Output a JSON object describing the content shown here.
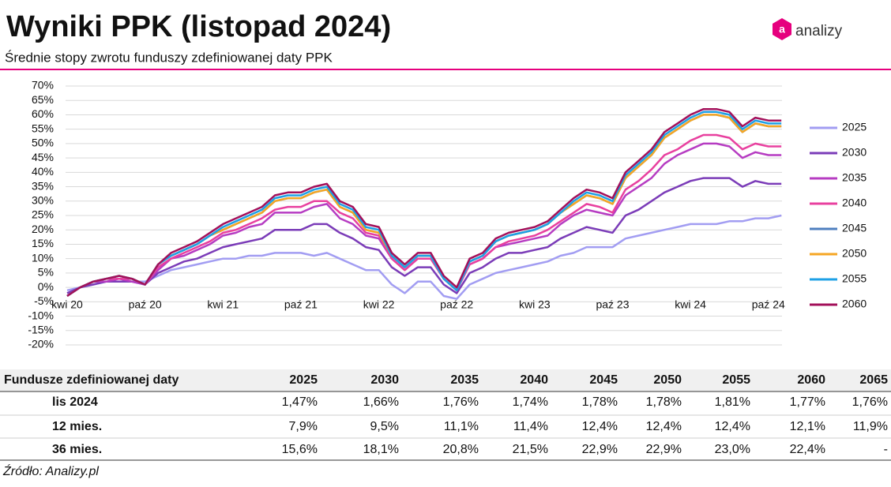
{
  "chart_data": {
    "type": "line",
    "title": "Wyniki PPK (listopad 2024)",
    "subtitle": "Średnie stopy zwrotu funduszy zdefiniowanej daty PPK",
    "logo": "analizy",
    "categories": [
      "kwi 20",
      null,
      null,
      null,
      null,
      null,
      "paź 20",
      null,
      null,
      null,
      null,
      null,
      "kwi 21",
      null,
      null,
      null,
      null,
      null,
      "paź 21",
      null,
      null,
      null,
      null,
      null,
      "kwi 22",
      null,
      null,
      null,
      null,
      null,
      "paź 22",
      null,
      null,
      null,
      null,
      null,
      "kwi 23",
      null,
      null,
      null,
      null,
      null,
      "paź 23",
      null,
      null,
      null,
      null,
      null,
      "kwi 24",
      null,
      null,
      null,
      null,
      null,
      "paź 24",
      null
    ],
    "ylim": [
      -20,
      70
    ],
    "yticks": [
      {
        "value": -20,
        "label": "-20%"
      },
      {
        "value": -15,
        "label": "-15%"
      },
      {
        "value": -10,
        "label": "-10%"
      },
      {
        "value": -5,
        "label": "-5%"
      },
      {
        "value": 0,
        "label": "0%"
      },
      {
        "value": 5,
        "label": "5%"
      },
      {
        "value": 10,
        "label": "10%"
      },
      {
        "value": 15,
        "label": "15%"
      },
      {
        "value": 20,
        "label": "20%"
      },
      {
        "value": 25,
        "label": "25%"
      },
      {
        "value": 30,
        "label": "30%"
      },
      {
        "value": 35,
        "label": "35%"
      },
      {
        "value": 40,
        "label": "40%"
      },
      {
        "value": 45,
        "label": "45%"
      },
      {
        "value": 50,
        "label": "50%"
      },
      {
        "value": 55,
        "label": "55%"
      },
      {
        "value": 60,
        "label": "60%"
      },
      {
        "value": 65,
        "label": "65%"
      },
      {
        "value": 70,
        "label": "70%"
      }
    ],
    "grid": true,
    "series": [
      {
        "name": "2025",
        "color": "#a29df2",
        "values": [
          -1,
          0,
          1,
          2,
          2,
          2,
          2,
          4,
          6,
          7,
          8,
          9,
          10,
          10,
          11,
          11,
          12,
          12,
          12,
          11,
          12,
          10,
          8,
          6,
          6,
          1,
          -2,
          2,
          2,
          -3,
          -4,
          1,
          3,
          5,
          6,
          7,
          8,
          9,
          11,
          12,
          14,
          14,
          14,
          17,
          18,
          19,
          20,
          21,
          22,
          22,
          22,
          23,
          23,
          24,
          24,
          25
        ]
      },
      {
        "name": "2030",
        "color": "#7b3cb8",
        "values": [
          -2,
          0,
          1,
          2,
          2,
          2,
          1,
          5,
          7,
          9,
          10,
          12,
          14,
          15,
          16,
          17,
          20,
          20,
          20,
          22,
          22,
          19,
          17,
          14,
          13,
          7,
          4,
          7,
          7,
          1,
          -2,
          5,
          7,
          10,
          12,
          12,
          13,
          14,
          17,
          19,
          21,
          20,
          19,
          25,
          27,
          30,
          33,
          35,
          37,
          38,
          38,
          38,
          35,
          37,
          36,
          36
        ]
      },
      {
        "name": "2035",
        "color": "#b63cc2",
        "values": [
          -3,
          0,
          2,
          2,
          3,
          2,
          1,
          6,
          10,
          11,
          13,
          15,
          18,
          19,
          21,
          22,
          26,
          26,
          26,
          28,
          29,
          24,
          22,
          18,
          17,
          10,
          6,
          10,
          10,
          3,
          -1,
          8,
          10,
          14,
          15,
          16,
          17,
          18,
          22,
          25,
          27,
          26,
          25,
          32,
          35,
          38,
          43,
          46,
          48,
          50,
          50,
          49,
          45,
          47,
          46,
          46
        ]
      },
      {
        "name": "2040",
        "color": "#e8409f",
        "values": [
          -3,
          0,
          2,
          3,
          3,
          3,
          1,
          7,
          10,
          12,
          14,
          16,
          19,
          20,
          22,
          24,
          27,
          28,
          28,
          30,
          30,
          26,
          24,
          19,
          18,
          10,
          6,
          10,
          10,
          3,
          -1,
          8,
          10,
          14,
          16,
          17,
          18,
          20,
          23,
          26,
          29,
          28,
          26,
          34,
          37,
          41,
          46,
          48,
          51,
          53,
          53,
          52,
          48,
          50,
          49,
          49
        ]
      },
      {
        "name": "2045",
        "color": "#4f7fbf",
        "values": [
          -3,
          0,
          2,
          3,
          4,
          3,
          1,
          8,
          11,
          13,
          15,
          18,
          20,
          22,
          24,
          26,
          30,
          31,
          31,
          33,
          34,
          28,
          26,
          20,
          19,
          11,
          7,
          11,
          11,
          3,
          -1,
          9,
          11,
          16,
          18,
          19,
          20,
          22,
          26,
          29,
          32,
          31,
          29,
          38,
          42,
          46,
          52,
          55,
          58,
          60,
          60,
          59,
          54,
          57,
          56,
          56
        ]
      },
      {
        "name": "2050",
        "color": "#f5a623",
        "values": [
          -3,
          0,
          2,
          3,
          4,
          3,
          1,
          8,
          11,
          13,
          15,
          18,
          20,
          22,
          24,
          26,
          30,
          31,
          31,
          33,
          34,
          28,
          26,
          20,
          19,
          11,
          7,
          11,
          11,
          3,
          -1,
          9,
          11,
          16,
          18,
          19,
          20,
          22,
          26,
          29,
          32,
          31,
          29,
          38,
          42,
          46,
          52,
          55,
          58,
          60,
          60,
          59,
          54,
          57,
          56,
          56
        ]
      },
      {
        "name": "2055",
        "color": "#1ea0e6",
        "values": [
          -3,
          0,
          2,
          3,
          4,
          3,
          1,
          8,
          11,
          13,
          15,
          18,
          21,
          23,
          25,
          27,
          31,
          32,
          32,
          34,
          35,
          29,
          27,
          21,
          20,
          11,
          7,
          11,
          11,
          3,
          -1,
          9,
          11,
          16,
          18,
          19,
          20,
          22,
          26,
          30,
          33,
          32,
          30,
          39,
          43,
          47,
          53,
          56,
          59,
          61,
          61,
          60,
          55,
          58,
          57,
          57
        ]
      },
      {
        "name": "2060",
        "color": "#a3105a",
        "values": [
          -3,
          0,
          2,
          3,
          4,
          3,
          1,
          8,
          12,
          14,
          16,
          19,
          22,
          24,
          26,
          28,
          32,
          33,
          33,
          35,
          36,
          30,
          28,
          22,
          21,
          12,
          8,
          12,
          12,
          4,
          0,
          10,
          12,
          17,
          19,
          20,
          21,
          23,
          27,
          31,
          34,
          33,
          31,
          40,
          44,
          48,
          54,
          57,
          60,
          62,
          62,
          61,
          56,
          59,
          58,
          58
        ]
      }
    ]
  },
  "table": {
    "header": [
      "Fundusze zdefiniowanej daty",
      "2025",
      "2030",
      "2035",
      "2040",
      "2045",
      "2050",
      "2055",
      "2060",
      "2065"
    ],
    "rows": [
      [
        "lis 2024",
        "1,47%",
        "1,66%",
        "1,76%",
        "1,74%",
        "1,78%",
        "1,78%",
        "1,81%",
        "1,77%",
        "1,76%"
      ],
      [
        "12 mies.",
        "7,9%",
        "9,5%",
        "11,1%",
        "11,4%",
        "12,4%",
        "12,4%",
        "12,4%",
        "12,1%",
        "11,9%"
      ],
      [
        "36 mies.",
        "15,6%",
        "18,1%",
        "20,8%",
        "21,5%",
        "22,9%",
        "22,9%",
        "23,0%",
        "22,4%",
        "-"
      ]
    ]
  },
  "source": "Źródło: Analizy.pl"
}
